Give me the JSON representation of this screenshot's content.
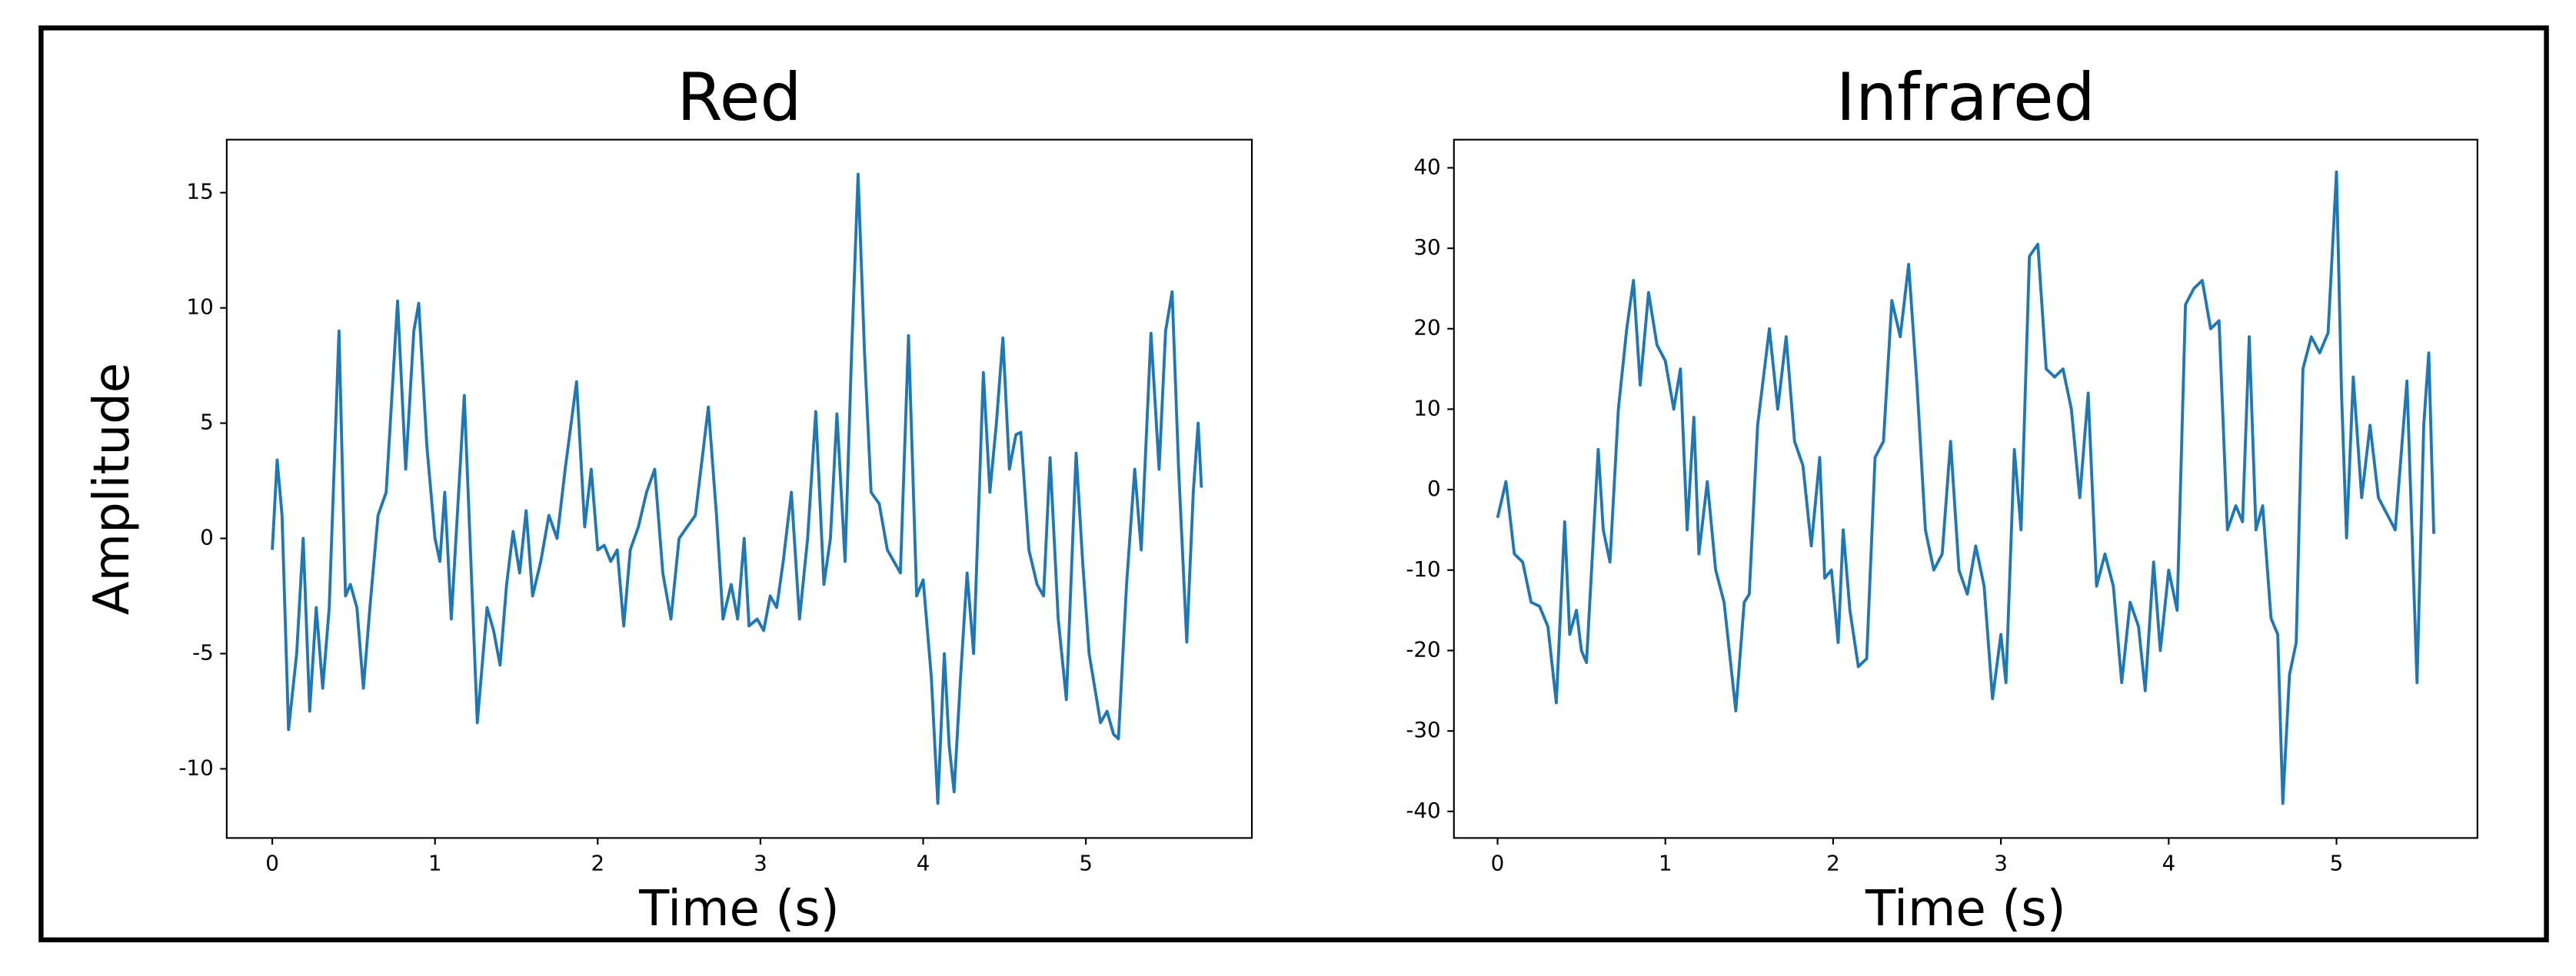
{
  "chart_data": [
    {
      "type": "line",
      "title": "Red",
      "xlabel": "Time (s)",
      "ylabel": "Amplitude",
      "color": "#1f77b4",
      "xlim": [
        -0.28,
        6.02
      ],
      "ylim": [
        -13,
        17.3
      ],
      "xticks": [
        0,
        1,
        2,
        3,
        4,
        5
      ],
      "yticks": [
        -10,
        -5,
        0,
        5,
        10,
        15
      ],
      "x": [
        0,
        0.03,
        0.06,
        0.1,
        0.15,
        0.19,
        0.23,
        0.27,
        0.31,
        0.35,
        0.41,
        0.45,
        0.48,
        0.52,
        0.56,
        0.6,
        0.65,
        0.7,
        0.77,
        0.82,
        0.87,
        0.9,
        0.95,
        1.0,
        1.03,
        1.06,
        1.1,
        1.18,
        1.26,
        1.32,
        1.36,
        1.4,
        1.44,
        1.48,
        1.52,
        1.56,
        1.6,
        1.65,
        1.7,
        1.75,
        1.8,
        1.87,
        1.92,
        1.96,
        2.0,
        2.04,
        2.08,
        2.12,
        2.16,
        2.2,
        2.25,
        2.3,
        2.35,
        2.4,
        2.45,
        2.5,
        2.55,
        2.6,
        2.68,
        2.73,
        2.77,
        2.82,
        2.86,
        2.9,
        2.93,
        2.98,
        3.02,
        3.06,
        3.1,
        3.14,
        3.19,
        3.24,
        3.29,
        3.34,
        3.39,
        3.43,
        3.47,
        3.52,
        3.56,
        3.6,
        3.64,
        3.68,
        3.73,
        3.78,
        3.82,
        3.86,
        3.91,
        3.96,
        4.0,
        4.05,
        4.09,
        4.13,
        4.16,
        4.19,
        4.23,
        4.27,
        4.31,
        4.37,
        4.41,
        4.45,
        4.49,
        4.53,
        4.57,
        4.6,
        4.65,
        4.7,
        4.74,
        4.78,
        4.83,
        4.88,
        4.94,
        4.98,
        5.02,
        5.09,
        5.13,
        5.17,
        5.2,
        5.25,
        5.3,
        5.34,
        5.4,
        5.45,
        5.49,
        5.53,
        5.57,
        5.62,
        5.66,
        5.69,
        5.71
      ],
      "values": [
        -0.5,
        3.4,
        1,
        -8.3,
        -5,
        0,
        -7.5,
        -3,
        -6.5,
        -3,
        9,
        -2.5,
        -2,
        -3,
        -6.5,
        -3,
        1,
        2,
        10.3,
        3,
        9,
        10.2,
        4,
        0,
        -1,
        2,
        -3.5,
        6.2,
        -8,
        -3,
        -4,
        -5.5,
        -2,
        0.3,
        -1.5,
        1.2,
        -2.5,
        -1,
        1,
        0,
        3,
        6.8,
        0.5,
        3,
        -0.5,
        -0.3,
        -1,
        -0.5,
        -3.8,
        -0.5,
        0.5,
        2,
        3,
        -1.5,
        -3.5,
        0,
        0.5,
        1,
        5.7,
        1,
        -3.5,
        -2,
        -3.5,
        0,
        -3.8,
        -3.5,
        -4,
        -2.5,
        -3,
        -1,
        2,
        -3.5,
        0,
        5.5,
        -2,
        0,
        5.4,
        -1,
        8,
        15.8,
        8,
        2,
        1.5,
        -0.5,
        -1,
        -1.5,
        8.8,
        -2.5,
        -1.8,
        -6,
        -11.5,
        -5,
        -9,
        -11,
        -6,
        -1.5,
        -5,
        7.2,
        2,
        5,
        8.7,
        3,
        4.5,
        4.6,
        -0.5,
        -2,
        -2.5,
        3.5,
        -3.5,
        -7,
        3.7,
        -1,
        -5,
        -8,
        -7.5,
        -8.5,
        -8.7,
        -2,
        3,
        -0.5,
        8.9,
        3,
        9,
        10.7,
        3,
        -4.5,
        2,
        5,
        2.2
      ]
    },
    {
      "type": "line",
      "title": "Infrared",
      "xlabel": "Time (s)",
      "color": "#1f77b4",
      "xlim": [
        -0.26,
        5.84
      ],
      "ylim": [
        -43.3,
        43.5
      ],
      "xticks": [
        0,
        1,
        2,
        3,
        4,
        5
      ],
      "yticks": [
        -40,
        -30,
        -20,
        -10,
        0,
        10,
        20,
        30,
        40
      ],
      "x": [
        0,
        0.05,
        0.1,
        0.15,
        0.2,
        0.25,
        0.3,
        0.35,
        0.4,
        0.43,
        0.47,
        0.5,
        0.53,
        0.6,
        0.63,
        0.67,
        0.72,
        0.77,
        0.81,
        0.85,
        0.9,
        0.95,
        1.0,
        1.05,
        1.09,
        1.13,
        1.17,
        1.2,
        1.25,
        1.3,
        1.35,
        1.42,
        1.47,
        1.5,
        1.55,
        1.62,
        1.67,
        1.72,
        1.77,
        1.82,
        1.87,
        1.92,
        1.95,
        1.99,
        2.03,
        2.06,
        2.1,
        2.15,
        2.2,
        2.25,
        2.3,
        2.35,
        2.4,
        2.45,
        2.5,
        2.55,
        2.6,
        2.65,
        2.7,
        2.75,
        2.8,
        2.85,
        2.9,
        2.95,
        3.0,
        3.03,
        3.08,
        3.12,
        3.17,
        3.22,
        3.27,
        3.32,
        3.37,
        3.42,
        3.47,
        3.52,
        3.57,
        3.62,
        3.67,
        3.72,
        3.77,
        3.82,
        3.86,
        3.91,
        3.95,
        4.0,
        4.05,
        4.1,
        4.15,
        4.2,
        4.25,
        4.3,
        4.35,
        4.4,
        4.44,
        4.48,
        4.52,
        4.56,
        4.61,
        4.65,
        4.68,
        4.72,
        4.76,
        4.8,
        4.85,
        4.9,
        4.95,
        5.0,
        5.03,
        5.06,
        5.1,
        5.15,
        5.2,
        5.25,
        5.3,
        5.35,
        5.42,
        5.48,
        5.52,
        5.55,
        5.58
      ],
      "values": [
        -3.5,
        1,
        -8,
        -9,
        -14,
        -14.5,
        -17,
        -26.5,
        -4,
        -18,
        -15,
        -20,
        -21.5,
        5,
        -5,
        -9,
        10,
        20,
        26,
        13,
        24.5,
        18,
        16,
        10,
        15,
        -5,
        9,
        -8,
        1,
        -10,
        -14,
        -27.5,
        -14,
        -13,
        8,
        20,
        10,
        19,
        6,
        3,
        -7,
        4,
        -11,
        -10,
        -19,
        -5,
        -15,
        -22,
        -21,
        4,
        6,
        23.5,
        19,
        28,
        13,
        -5,
        -10,
        -8,
        6,
        -10,
        -13,
        -7,
        -12,
        -26,
        -18,
        -24,
        5,
        -5,
        29,
        30.5,
        15,
        14,
        15,
        10,
        -1,
        12,
        -12,
        -8,
        -12,
        -24,
        -14,
        -17,
        -25,
        -9,
        -20,
        -10,
        -15,
        23,
        25,
        26,
        20,
        21,
        -5,
        -2,
        -4,
        19,
        -5,
        -2,
        -16,
        -18,
        -39,
        -23,
        -19,
        15,
        19,
        17,
        19.5,
        39.5,
        12,
        -6,
        14,
        -1,
        8,
        -1,
        -3,
        -5,
        13.5,
        -24,
        8,
        17,
        -5.5
      ]
    }
  ]
}
